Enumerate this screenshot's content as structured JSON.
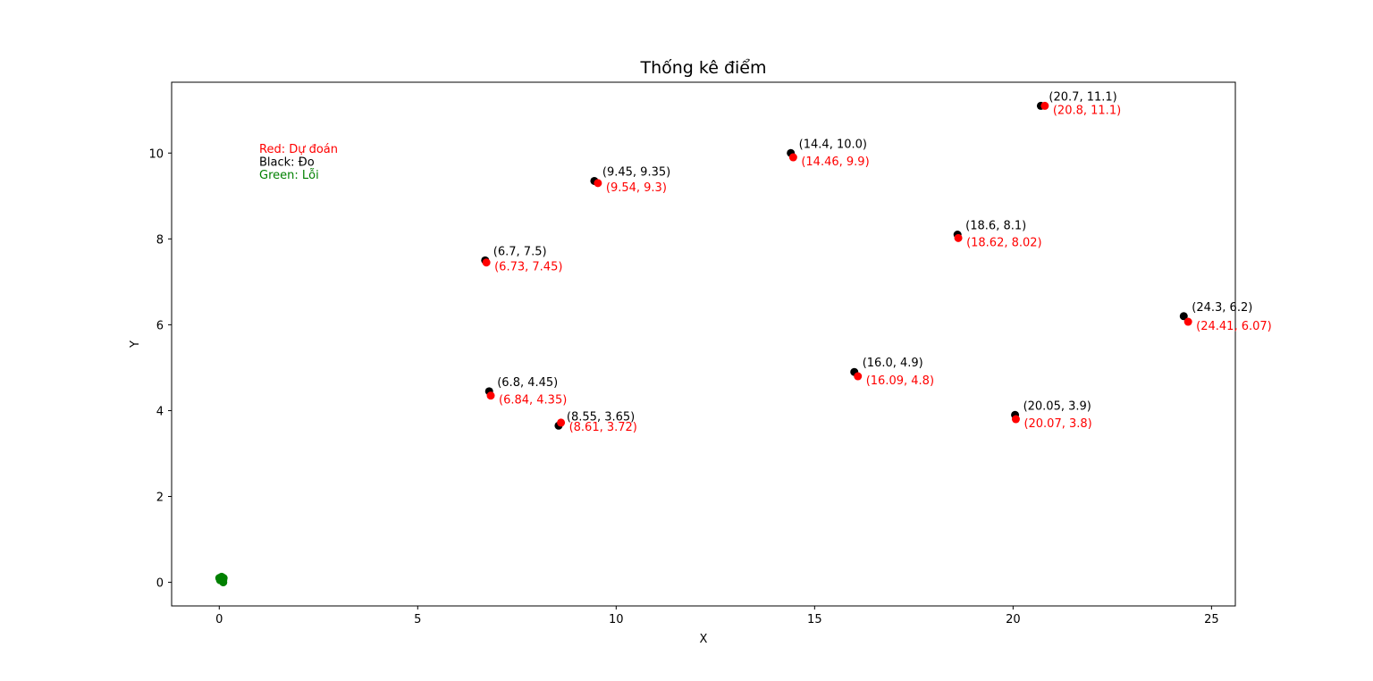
{
  "chart_data": {
    "type": "scatter",
    "title": "Thống kê điểm",
    "xlabel": "X",
    "ylabel": "Y",
    "xlim": [
      -1.2,
      25.6
    ],
    "ylim": [
      -0.55,
      11.65
    ],
    "xticks": [
      0,
      5,
      10,
      15,
      20,
      25
    ],
    "yticks": [
      0,
      2,
      4,
      6,
      8,
      10
    ],
    "grid": false,
    "legend_text": [
      {
        "text": "Red: Dự đoán",
        "color": "#ff0000"
      },
      {
        "text": "Black: Đo",
        "color": "#000000"
      },
      {
        "text": "Green: Lỗi",
        "color": "#008000"
      }
    ],
    "series": [
      {
        "color": "#000000",
        "points": [
          {
            "x": 20.7,
            "y": 11.1,
            "label": "(20.7, 11.1)"
          },
          {
            "x": 14.4,
            "y": 10.0,
            "label": "(14.4, 10.0)"
          },
          {
            "x": 9.45,
            "y": 9.35,
            "label": "(9.45, 9.35)"
          },
          {
            "x": 18.6,
            "y": 8.1,
            "label": "(18.6, 8.1)"
          },
          {
            "x": 6.7,
            "y": 7.5,
            "label": "(6.7, 7.5)"
          },
          {
            "x": 24.3,
            "y": 6.2,
            "label": "(24.3, 6.2)"
          },
          {
            "x": 16.0,
            "y": 4.9,
            "label": "(16.0, 4.9)"
          },
          {
            "x": 6.8,
            "y": 4.45,
            "label": "(6.8, 4.45)"
          },
          {
            "x": 20.05,
            "y": 3.9,
            "label": "(20.05, 3.9)"
          },
          {
            "x": 8.55,
            "y": 3.65,
            "label": "(8.55, 3.65)"
          }
        ]
      },
      {
        "color": "#ff0000",
        "points": [
          {
            "x": 20.8,
            "y": 11.1,
            "label": "(20.8, 11.1)"
          },
          {
            "x": 14.46,
            "y": 9.9,
            "label": "(14.46, 9.9)"
          },
          {
            "x": 9.54,
            "y": 9.3,
            "label": "(9.54, 9.3)"
          },
          {
            "x": 18.62,
            "y": 8.02,
            "label": "(18.62, 8.02)"
          },
          {
            "x": 6.73,
            "y": 7.45,
            "label": "(6.73, 7.45)"
          },
          {
            "x": 24.41,
            "y": 6.07,
            "label": "(24.41, 6.07)"
          },
          {
            "x": 16.09,
            "y": 4.8,
            "label": "(16.09, 4.8)"
          },
          {
            "x": 6.84,
            "y": 4.35,
            "label": "(6.84, 4.35)"
          },
          {
            "x": 20.07,
            "y": 3.8,
            "label": "(20.07, 3.8)"
          },
          {
            "x": 8.61,
            "y": 3.72,
            "label": "(8.61, 3.72)"
          }
        ]
      },
      {
        "color": "#008000",
        "points": [
          {
            "x": 0.1,
            "y": 0.0
          },
          {
            "x": 0.06,
            "y": 0.1
          },
          {
            "x": 0.09,
            "y": 0.05
          },
          {
            "x": 0.02,
            "y": 0.05
          },
          {
            "x": 0.04,
            "y": 0.07
          },
          {
            "x": 0.06,
            "y": 0.13
          },
          {
            "x": 0.11,
            "y": 0.1
          },
          {
            "x": 0.0,
            "y": 0.1
          },
          {
            "x": 0.1,
            "y": 0.05
          },
          {
            "x": 0.06,
            "y": 0.07
          }
        ]
      }
    ]
  }
}
